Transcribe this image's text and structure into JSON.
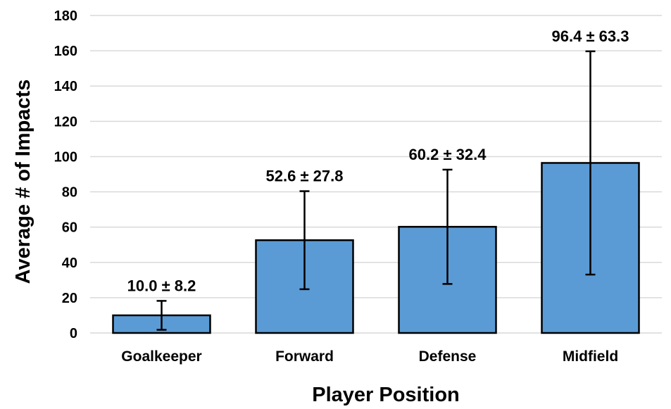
{
  "chart_data": {
    "type": "bar",
    "categories": [
      "Goalkeeper",
      "Forward",
      "Defense",
      "Midfield"
    ],
    "values": [
      10.0,
      52.6,
      60.2,
      96.4
    ],
    "errors": [
      8.2,
      27.8,
      32.4,
      63.3
    ],
    "data_labels": [
      "10.0 ± 8.2",
      "52.6 ± 27.8",
      "60.2 ± 32.4",
      "96.4 ± 63.3"
    ],
    "xlabel": "Player Position",
    "ylabel": "Average # of Impacts",
    "ylim": [
      0,
      180
    ],
    "yticks": [
      0,
      20,
      40,
      60,
      80,
      100,
      120,
      140,
      160,
      180
    ],
    "grid": true,
    "bar_color": "#5b9bd5"
  }
}
